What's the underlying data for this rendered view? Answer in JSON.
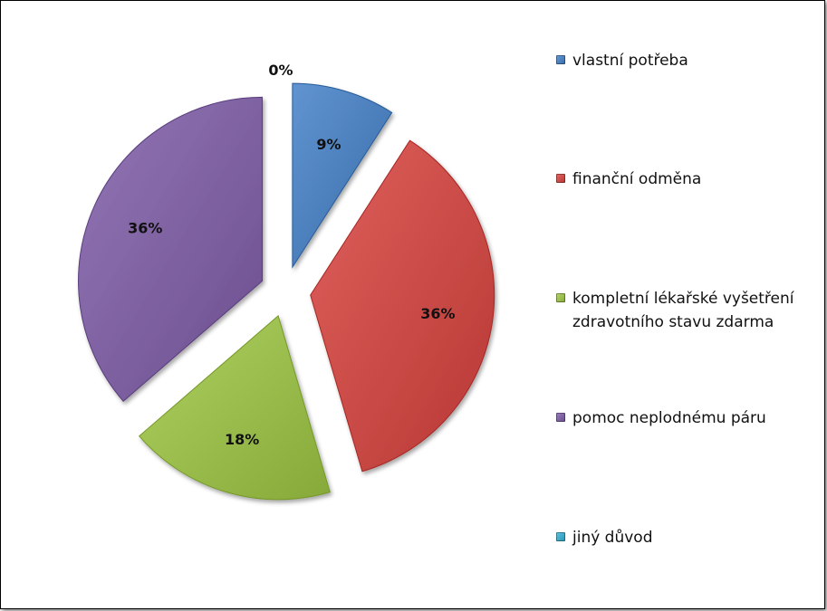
{
  "chart_data": {
    "type": "pie",
    "title": "",
    "slices": [
      {
        "label": "vlastní potřeba",
        "value": 9,
        "display": "9%",
        "color": "#4a7ebb"
      },
      {
        "label": "finanční odměna",
        "value": 36,
        "display": "36%",
        "color": "#c94a46"
      },
      {
        "label": "kompletní lékařské vyšetření zdravotního stavu zdarma",
        "value": 18,
        "display": "18%",
        "color": "#98bb4b"
      },
      {
        "label": "pomoc neplodnému páru",
        "value": 36,
        "display": "36%",
        "color": "#7d60a0"
      },
      {
        "label": "jiný důvod",
        "value": 0,
        "display": "0%",
        "color": "#3ea7c6"
      }
    ],
    "legend_position": "right",
    "exploded": true
  }
}
